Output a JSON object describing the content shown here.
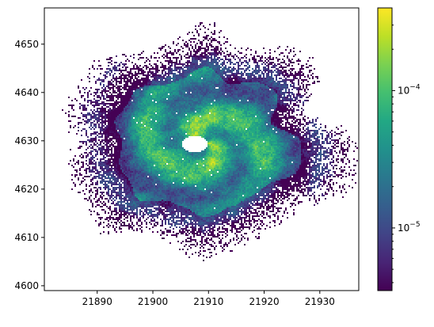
{
  "chart_data": {
    "type": "heatmap",
    "title": "",
    "xlabel": "",
    "ylabel": "",
    "xlim": [
      21880.5,
      21937.0
    ],
    "ylim": [
      4599.0,
      4657.5
    ],
    "x_ticks": [
      21890,
      21900,
      21910,
      21920,
      21930
    ],
    "y_ticks": [
      4600,
      4610,
      4620,
      4630,
      4640,
      4650
    ],
    "colorbar": {
      "scale": "log",
      "colormap": "viridis",
      "range": [
        3.5e-06,
        0.0004
      ],
      "major_ticks": [
        1e-05,
        0.0001
      ],
      "major_tick_labels": [
        "10^-5",
        "10^-4"
      ],
      "minor_ticks": [
        4e-06,
        5e-06,
        6e-06,
        7e-06,
        8e-06,
        9e-06,
        2e-05,
        3e-05,
        4e-05,
        5e-05,
        6e-05,
        7e-05,
        8e-05,
        9e-05,
        0.0002,
        0.0003
      ]
    },
    "structure": {
      "kind": "spiral vortex density map",
      "center": [
        21909.5,
        4629.5
      ],
      "eye_center": [
        21907.5,
        4629.3
      ],
      "outer_radius_x": 25,
      "outer_radius_y": 22,
      "empty_value_color": "#ffffff"
    }
  },
  "colors": {
    "viridis": [
      "#440154",
      "#482475",
      "#414487",
      "#355f8d",
      "#2a788e",
      "#21918c",
      "#22a884",
      "#44bf70",
      "#7ad151",
      "#bddf26",
      "#fde725"
    ],
    "axis": "#000000",
    "background": "#ffffff"
  }
}
